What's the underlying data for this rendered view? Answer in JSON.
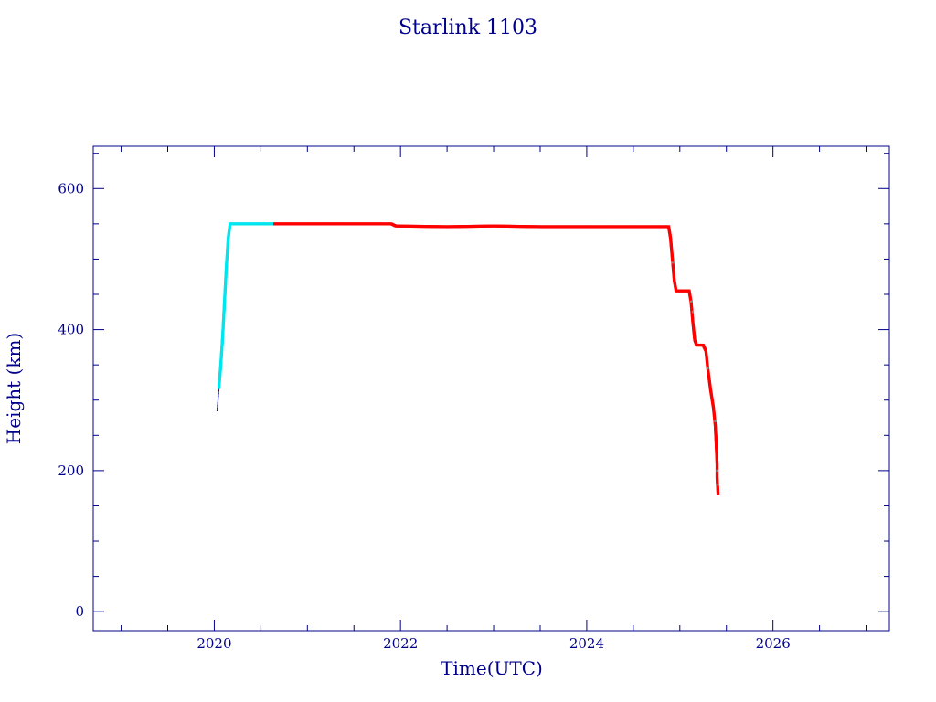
{
  "chart_data": {
    "type": "scatter",
    "title": "Starlink 1103",
    "xlabel": "Time(UTC)",
    "ylabel": "Height (km)",
    "xlim": [
      2018.7,
      2027.25
    ],
    "ylim": [
      -27,
      660
    ],
    "x_ticks": [
      2020,
      2022,
      2024,
      2026
    ],
    "y_ticks": [
      0,
      200,
      400,
      600
    ],
    "grid": false,
    "colors": {
      "axis": "#00008b",
      "initial": "#00008b",
      "raising": "#00e5ee",
      "operational": "#ff0000",
      "secondary_marker": "#8a8a8a"
    },
    "series": [
      {
        "color_key": "initial",
        "points": [
          [
            2020.03,
            285
          ],
          [
            2020.04,
            300
          ],
          [
            2020.05,
            315
          ]
        ]
      },
      {
        "color_key": "raising",
        "points": [
          [
            2020.05,
            318
          ],
          [
            2020.07,
            350
          ],
          [
            2020.09,
            390
          ],
          [
            2020.11,
            440
          ],
          [
            2020.13,
            490
          ],
          [
            2020.15,
            530
          ],
          [
            2020.17,
            550
          ],
          [
            2020.3,
            550
          ],
          [
            2020.45,
            550
          ],
          [
            2020.6,
            550
          ],
          [
            2020.65,
            550
          ]
        ]
      },
      {
        "color_key": "operational",
        "points": [
          [
            2020.65,
            550
          ],
          [
            2021.0,
            550
          ],
          [
            2021.4,
            550
          ],
          [
            2021.9,
            550
          ],
          [
            2021.95,
            547
          ],
          [
            2022.5,
            546
          ],
          [
            2023.0,
            547
          ],
          [
            2023.5,
            546
          ],
          [
            2024.0,
            546
          ],
          [
            2024.5,
            546
          ],
          [
            2024.88,
            546
          ],
          [
            2024.9,
            530
          ],
          [
            2024.92,
            500
          ],
          [
            2024.94,
            470
          ],
          [
            2024.96,
            455
          ],
          [
            2025.05,
            455
          ],
          [
            2025.1,
            455
          ],
          [
            2025.12,
            440
          ],
          [
            2025.14,
            410
          ],
          [
            2025.16,
            385
          ],
          [
            2025.18,
            378
          ],
          [
            2025.25,
            378
          ],
          [
            2025.28,
            370
          ],
          [
            2025.3,
            345
          ],
          [
            2025.33,
            315
          ],
          [
            2025.36,
            290
          ],
          [
            2025.38,
            265
          ],
          [
            2025.39,
            240
          ],
          [
            2025.4,
            210
          ],
          [
            2025.4,
            190
          ],
          [
            2025.41,
            168
          ]
        ]
      },
      {
        "color_key": "secondary_marker",
        "points": [
          [
            2024.92,
            495
          ],
          [
            2025.12,
            440
          ],
          [
            2025.14,
            425
          ],
          [
            2025.3,
            345
          ],
          [
            2025.38,
            270
          ],
          [
            2025.4,
            200
          ],
          [
            2025.41,
            180
          ]
        ]
      }
    ]
  }
}
